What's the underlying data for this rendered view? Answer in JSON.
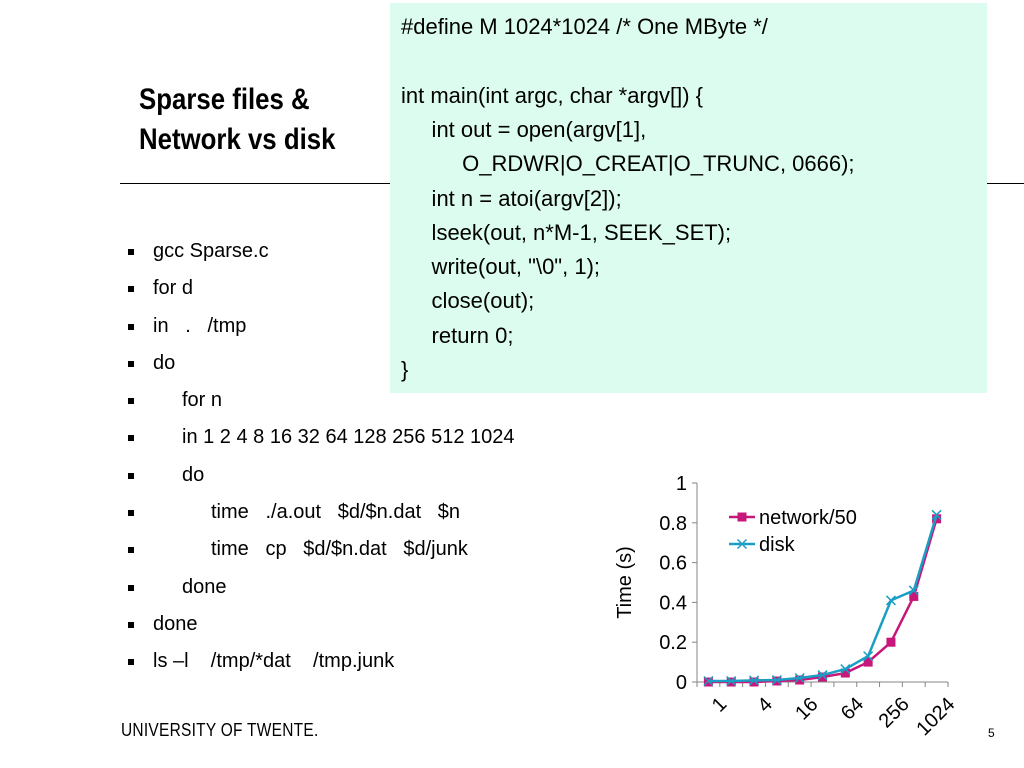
{
  "slide": {
    "title_line1": "Sparse files &",
    "title_line2": "Network vs disk",
    "footer": "UNIVERSITY OF TWENTE.",
    "page_number": "5"
  },
  "code": [
    "#define M 1024*1024 /* One MByte */",
    "",
    "int main(int argc, char *argv[]) {",
    "     int out = open(argv[1],",
    "          O_RDWR|O_CREAT|O_TRUNC, 0666);",
    "     int n = atoi(argv[2]);",
    "     lseek(out, n*M-1, SEEK_SET);",
    "     write(out, \"\\0\", 1);",
    "     close(out);",
    "     return 0;",
    "}"
  ],
  "bullets": [
    {
      "text": "gcc Sparse.c",
      "indent": 0
    },
    {
      "text": "for d",
      "indent": 0
    },
    {
      "text": "in   .   /tmp",
      "indent": 0
    },
    {
      "text": "do",
      "indent": 0
    },
    {
      "text": "for n",
      "indent": 1
    },
    {
      "text": "in 1 2 4 8 16 32 64 128 256 512 1024",
      "indent": 1
    },
    {
      "text": "do",
      "indent": 1
    },
    {
      "text": "time   ./a.out   $d/$n.dat   $n",
      "indent": 2
    },
    {
      "text": "time   cp   $d/$n.dat   $d/junk",
      "indent": 2
    },
    {
      "text": "done",
      "indent": 1
    },
    {
      "text": "done",
      "indent": 0
    },
    {
      "text": "ls –l    /tmp/*dat    /tmp.junk",
      "indent": 0
    }
  ],
  "chart_data": {
    "type": "line",
    "x": [
      1,
      2,
      4,
      8,
      16,
      32,
      64,
      128,
      256,
      512,
      1024
    ],
    "x_tick_labels": [
      "1",
      "4",
      "16",
      "64",
      "256",
      "1024"
    ],
    "ylabel": "Time (s)",
    "ylim": [
      0,
      1
    ],
    "y_ticks": [
      "0",
      "0.2",
      "0.4",
      "0.6",
      "0.8",
      "1"
    ],
    "legend_position": "top-left",
    "series": [
      {
        "name": "network/50",
        "color": "#c8177a",
        "marker": "square",
        "values": [
          0.0,
          0.0,
          0.0,
          0.005,
          0.01,
          0.025,
          0.045,
          0.1,
          0.2,
          0.43,
          0.82
        ]
      },
      {
        "name": "disk",
        "color": "#1b9ec3",
        "marker": "x",
        "values": [
          0.005,
          0.005,
          0.008,
          0.01,
          0.02,
          0.035,
          0.065,
          0.13,
          0.41,
          0.46,
          0.84
        ]
      }
    ]
  }
}
